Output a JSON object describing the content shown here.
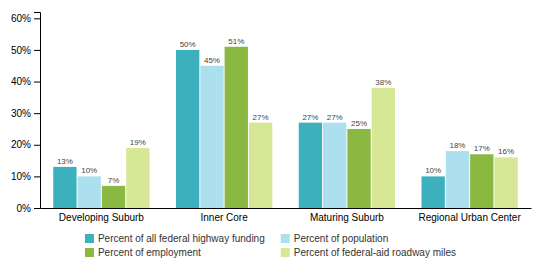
{
  "chart_data": {
    "type": "bar",
    "categories": [
      "Developing Suburb",
      "Inner Core",
      "Maturing Suburb",
      "Regional Urban Center"
    ],
    "series": [
      {
        "name": "Percent of all federal highway funding",
        "color": "#3db0be",
        "values": [
          13,
          50,
          27,
          10
        ],
        "value_labels": [
          "13%",
          "50%",
          "27%",
          "10%"
        ]
      },
      {
        "name": "Percent of population",
        "color": "#ade0ee",
        "values": [
          10,
          45,
          27,
          18
        ],
        "value_labels": [
          "10%",
          "45%",
          "27%",
          "18%"
        ]
      },
      {
        "name": "Percent of employment",
        "color": "#8ab840",
        "values": [
          7,
          51,
          25,
          17
        ],
        "value_labels": [
          "7%",
          "51%",
          "25%",
          "17%"
        ]
      },
      {
        "name": "Percent of federal-aid roadway miles",
        "color": "#d6e896",
        "values": [
          19,
          27,
          38,
          16
        ],
        "value_labels": [
          "19%",
          "27%",
          "38%",
          "16%"
        ]
      }
    ],
    "ylim": [
      0,
      62
    ],
    "yticks": [
      {
        "value": 0,
        "label": "0%"
      },
      {
        "value": 10,
        "label": "10%"
      },
      {
        "value": 20,
        "label": "20%"
      },
      {
        "value": 30,
        "label": "30%"
      },
      {
        "value": 40,
        "label": "40%"
      },
      {
        "value": 50,
        "label": "50%"
      },
      {
        "value": 60,
        "label": "60%"
      }
    ],
    "grid": false,
    "legend": "bottom",
    "data_labels": true
  }
}
